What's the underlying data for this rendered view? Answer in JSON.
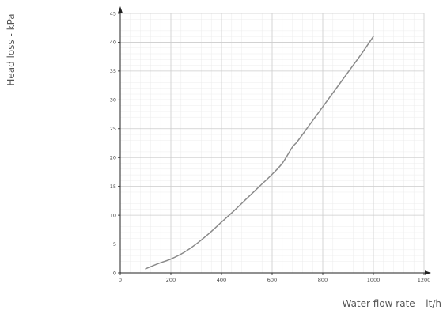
{
  "chart_data": {
    "type": "line",
    "title": "",
    "xlabel": "Water flow rate – lt/h",
    "ylabel": "Head loss - kPa",
    "xlim": [
      0,
      1200
    ],
    "ylim": [
      0,
      45
    ],
    "x_ticks": [
      0,
      200,
      400,
      600,
      800,
      1000,
      1200
    ],
    "y_ticks": [
      0,
      5,
      10,
      15,
      20,
      25,
      30,
      35,
      40,
      45
    ],
    "grid": true,
    "legend": "none",
    "colors": {
      "line": "#8a8a8a",
      "major_grid": "#cccccc",
      "minor_grid": "#ececec",
      "axis": "#222222"
    },
    "series": [
      {
        "values": [
          [
            100,
            0.7
          ],
          [
            150,
            1.6
          ],
          [
            200,
            2.4
          ],
          [
            250,
            3.5
          ],
          [
            300,
            5.0
          ],
          [
            350,
            6.8
          ],
          [
            400,
            8.8
          ],
          [
            450,
            10.8
          ],
          [
            500,
            12.9
          ],
          [
            550,
            15.0
          ],
          [
            600,
            17.1
          ],
          [
            640,
            19.0
          ],
          [
            680,
            21.8
          ],
          [
            700,
            22.8
          ],
          [
            750,
            25.8
          ],
          [
            800,
            28.8
          ],
          [
            850,
            31.8
          ],
          [
            900,
            34.8
          ],
          [
            950,
            37.8
          ],
          [
            1000,
            41.0
          ]
        ]
      }
    ]
  }
}
